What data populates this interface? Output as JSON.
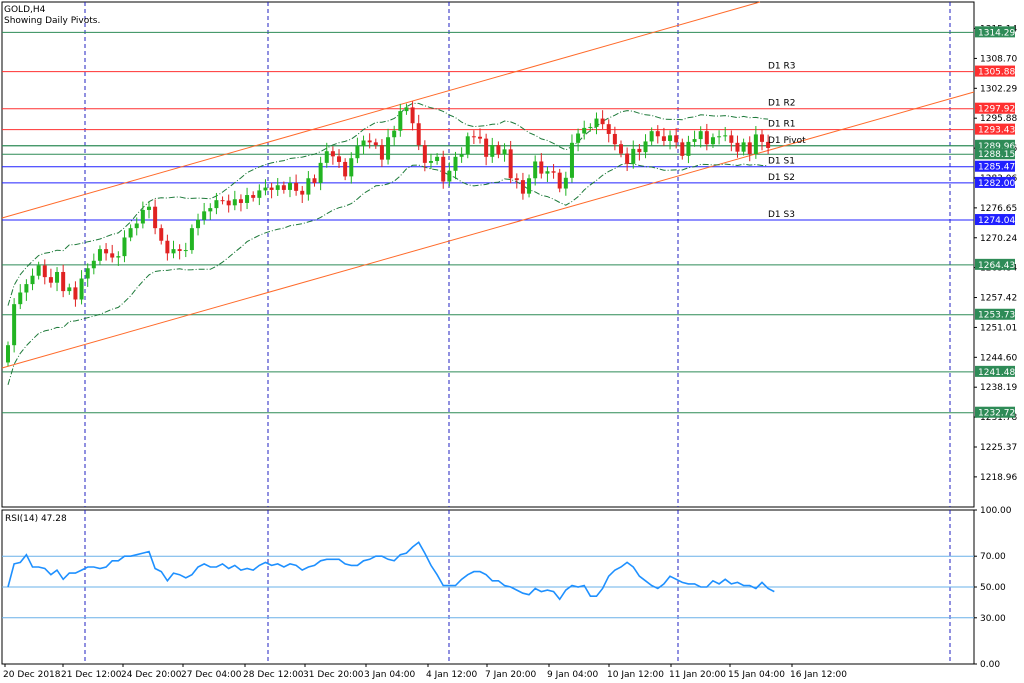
{
  "symbol_label": "GOLD,H4",
  "indicator_label": "Showing Daily Pivots.",
  "rsi_label": "RSI(14) 47.28",
  "colors": {
    "up": "#22b422",
    "down": "#e02222",
    "pivot_resistance": "#ff3030",
    "pivot_support": "#2020ff",
    "hline": "#2e8b57",
    "channel": "#ff6a2a",
    "envelope": "#1e7a3a",
    "rsi_line": "#1e90ff"
  },
  "chart_data": [
    {
      "type": "candlestick",
      "title": "GOLD,H4",
      "subtitle": "Showing Daily Pivots.",
      "ylim": [
        1212.5,
        1320.8
      ],
      "y_ticks": [
        "1315.14",
        "1308.70",
        "1302.29",
        "1295.88",
        "1289.46",
        "1283.06",
        "1276.65",
        "1270.24",
        "1263.84",
        "1257.42",
        "1251.01",
        "1244.60",
        "1238.19",
        "1231.78",
        "1225.37",
        "1218.96"
      ],
      "x_ticks": [
        "20 Dec 2018",
        "21 Dec 12:00",
        "24 Dec 20:00",
        "27 Dec 04:00",
        "28 Dec 12:00",
        "31 Dec 20:00",
        "3 Jan 04:00",
        "4 Jan 12:00",
        "7 Jan 20:00",
        "9 Jan 04:00",
        "10 Jan 12:00",
        "11 Jan 20:00",
        "15 Jan 04:00",
        "16 Jan 12:00"
      ],
      "close": [
        1247.2,
        1256.0,
        1258.5,
        1260.3,
        1262.1,
        1264.3,
        1261.8,
        1260.6,
        1262.9,
        1258.8,
        1259.6,
        1257.0,
        1261.5,
        1263.7,
        1265.3,
        1267.8,
        1266.9,
        1266.0,
        1266.3,
        1270.3,
        1272.3,
        1273.3,
        1276.2,
        1276.9,
        1272.3,
        1269.6,
        1266.9,
        1267.8,
        1267.4,
        1267.6,
        1272.3,
        1274.1,
        1275.9,
        1276.6,
        1278.3,
        1278.2,
        1277.2,
        1278.5,
        1277.7,
        1279.4,
        1278.8,
        1280.4,
        1281.0,
        1280.5,
        1281.5,
        1280.5,
        1282.0,
        1280.3,
        1279.5,
        1283.0,
        1282.0,
        1286.3,
        1288.8,
        1287.7,
        1286.5,
        1283.4,
        1287.3,
        1289.9,
        1291.1,
        1290.7,
        1290.1,
        1287.0,
        1291.8,
        1293.2,
        1297.4,
        1298.2,
        1294.8,
        1290.1,
        1286.3,
        1286.7,
        1287.6,
        1282.3,
        1284.6,
        1287.6,
        1288.1,
        1292.0,
        1291.9,
        1291.5,
        1287.6,
        1290.1,
        1288.1,
        1289.2,
        1283.0,
        1282.6,
        1279.7,
        1283.0,
        1286.6,
        1284.0,
        1284.5,
        1284.2,
        1280.8,
        1283.1,
        1290.6,
        1292.6,
        1293.8,
        1294.0,
        1295.8,
        1294.6,
        1292.5,
        1290.3,
        1288.3,
        1286.1,
        1289.3,
        1288.6,
        1290.9,
        1293.1,
        1292.0,
        1291.0,
        1292.2,
        1290.7,
        1287.8,
        1290.8,
        1291.4,
        1293.1,
        1290.3,
        1291.8,
        1292.0,
        1292.2,
        1290.6,
        1288.7,
        1290.7,
        1288.2,
        1292.4,
        1290.8,
        1289.5
      ],
      "series": [
        {
          "name": "D1 R3",
          "value": 1305.88
        },
        {
          "name": "D1 R2",
          "value": 1297.92
        },
        {
          "name": "D1 R1",
          "value": 1293.43
        },
        {
          "name": "D1 Pivot",
          "value": 1289.96
        },
        {
          "name": "D1 S1",
          "value": 1285.47
        },
        {
          "name": "D1 S2",
          "value": 1282.0
        },
        {
          "name": "D1 S3",
          "value": 1274.04
        }
      ],
      "price_tags": [
        "1314.29",
        "1305.88",
        "1297.92",
        "1293.43",
        "1289.96",
        "1288.15",
        "1285.47",
        "1282.00",
        "1274.04",
        "1264.43",
        "1253.73",
        "1241.48",
        "1232.72"
      ],
      "horizontal_levels": [
        1314.29,
        1289.96,
        1288.15,
        1264.43,
        1253.73,
        1241.48,
        1232.72
      ],
      "annotations": [
        "D1 R3",
        "D1 R2",
        "D1 R1",
        "D1 Pivot",
        "D1 S1",
        "D1 S2",
        "D1 S3"
      ]
    },
    {
      "type": "line",
      "title": "RSI(14) 47.28",
      "ylim": [
        0,
        100
      ],
      "y_ticks": [
        "100.00",
        "70.00",
        "50.00",
        "30.00",
        "0.00"
      ],
      "levels": [
        70,
        50,
        30
      ],
      "values": [
        50,
        65,
        66,
        71,
        63,
        63,
        62,
        58,
        61,
        55,
        59,
        59,
        61,
        63,
        63,
        62,
        63,
        67,
        67,
        70,
        70,
        71,
        72,
        73,
        62,
        60,
        54,
        59,
        58,
        56,
        58,
        63,
        65,
        63,
        63,
        65,
        62,
        64,
        61,
        62,
        61,
        64,
        66,
        64,
        65,
        63,
        65,
        64,
        61,
        63,
        64,
        67,
        68,
        68,
        68,
        65,
        64,
        64,
        67,
        68,
        70,
        70,
        68,
        67,
        71,
        72,
        76,
        79,
        72,
        64,
        58,
        51,
        51,
        51,
        55,
        58,
        60,
        60,
        58,
        54,
        54,
        51,
        50,
        48,
        46,
        45,
        49,
        47,
        48,
        47,
        42,
        48,
        51,
        50,
        51,
        44,
        44,
        49,
        57,
        61,
        63,
        66,
        63,
        57,
        54,
        51,
        49,
        52,
        57,
        55,
        53,
        52,
        52,
        50,
        50,
        54,
        52,
        55,
        52,
        53,
        51,
        51,
        49,
        53,
        49,
        47
      ]
    }
  ]
}
